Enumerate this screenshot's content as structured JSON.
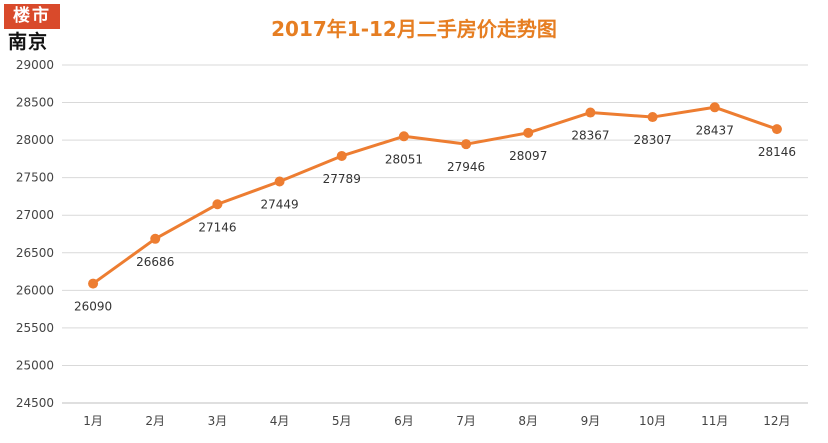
{
  "logo": {
    "top": "楼市",
    "bottom": "南京"
  },
  "chart_data": {
    "type": "line",
    "title": "2017年1-12月二手房价走势图",
    "xlabel": "",
    "ylabel": "",
    "categories": [
      "1月",
      "2月",
      "3月",
      "4月",
      "5月",
      "6月",
      "7月",
      "8月",
      "9月",
      "10月",
      "11月",
      "12月"
    ],
    "series": [
      {
        "values": [
          26090,
          26686,
          27146,
          27449,
          27789,
          28051,
          27946,
          28097,
          28367,
          28307,
          28437,
          28146
        ]
      }
    ],
    "ylim": [
      24500,
      29000
    ],
    "yticks": [
      24500,
      25000,
      25500,
      26000,
      26500,
      27000,
      27500,
      28000,
      28500,
      29000
    ],
    "grid": true,
    "legend": "none",
    "line_color": "#ed7d31",
    "marker_color": "#ed7d31"
  }
}
